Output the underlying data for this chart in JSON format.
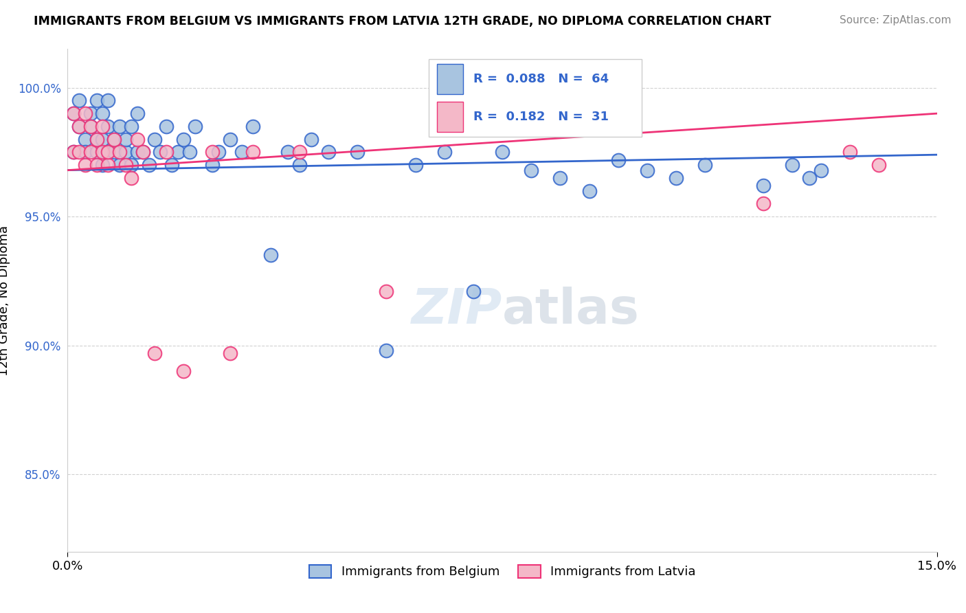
{
  "title": "IMMIGRANTS FROM BELGIUM VS IMMIGRANTS FROM LATVIA 12TH GRADE, NO DIPLOMA CORRELATION CHART",
  "source": "Source: ZipAtlas.com",
  "ylabel": "12th Grade, No Diploma",
  "legend_belgium": "Immigrants from Belgium",
  "legend_latvia": "Immigrants from Latvia",
  "R_belgium": 0.088,
  "N_belgium": 64,
  "R_latvia": 0.182,
  "N_latvia": 31,
  "color_belgium": "#a8c4e0",
  "color_latvia": "#f4b8c8",
  "color_line_belgium": "#3366cc",
  "color_line_latvia": "#ee3377",
  "color_text_blue": "#3366cc",
  "xmin": 0.0,
  "xmax": 0.15,
  "ymin": 0.82,
  "ymax": 1.015,
  "yticks": [
    0.85,
    0.9,
    0.95,
    1.0
  ],
  "ytick_labels": [
    "85.0%",
    "90.0%",
    "95.0%",
    "100.0%"
  ],
  "bel_line_y0": 0.968,
  "bel_line_y1": 0.974,
  "lat_line_y0": 0.968,
  "lat_line_y1": 0.99,
  "belgium_x": [
    0.001,
    0.001,
    0.002,
    0.002,
    0.003,
    0.003,
    0.004,
    0.004,
    0.005,
    0.005,
    0.005,
    0.006,
    0.006,
    0.006,
    0.007,
    0.007,
    0.007,
    0.008,
    0.008,
    0.009,
    0.009,
    0.01,
    0.01,
    0.011,
    0.011,
    0.012,
    0.012,
    0.013,
    0.014,
    0.015,
    0.016,
    0.017,
    0.018,
    0.019,
    0.02,
    0.021,
    0.022,
    0.025,
    0.026,
    0.028,
    0.03,
    0.032,
    0.035,
    0.038,
    0.04,
    0.042,
    0.045,
    0.05,
    0.055,
    0.06,
    0.065,
    0.07,
    0.075,
    0.08,
    0.085,
    0.09,
    0.095,
    0.1,
    0.105,
    0.11,
    0.12,
    0.125,
    0.128,
    0.13
  ],
  "belgium_y": [
    0.975,
    0.99,
    0.985,
    0.995,
    0.98,
    0.975,
    0.99,
    0.985,
    0.975,
    0.98,
    0.995,
    0.97,
    0.98,
    0.99,
    0.975,
    0.985,
    0.995,
    0.975,
    0.98,
    0.97,
    0.985,
    0.975,
    0.98,
    0.97,
    0.985,
    0.975,
    0.99,
    0.975,
    0.97,
    0.98,
    0.975,
    0.985,
    0.97,
    0.975,
    0.98,
    0.975,
    0.985,
    0.97,
    0.975,
    0.98,
    0.975,
    0.985,
    0.935,
    0.975,
    0.97,
    0.98,
    0.975,
    0.975,
    0.898,
    0.97,
    0.975,
    0.921,
    0.975,
    0.968,
    0.965,
    0.96,
    0.972,
    0.968,
    0.965,
    0.97,
    0.962,
    0.97,
    0.965,
    0.968
  ],
  "latvia_x": [
    0.001,
    0.001,
    0.002,
    0.002,
    0.003,
    0.003,
    0.004,
    0.004,
    0.005,
    0.005,
    0.006,
    0.006,
    0.007,
    0.007,
    0.008,
    0.009,
    0.01,
    0.011,
    0.012,
    0.013,
    0.015,
    0.017,
    0.02,
    0.025,
    0.028,
    0.032,
    0.04,
    0.055,
    0.12,
    0.135,
    0.14
  ],
  "latvia_y": [
    0.975,
    0.99,
    0.975,
    0.985,
    0.97,
    0.99,
    0.975,
    0.985,
    0.97,
    0.98,
    0.975,
    0.985,
    0.97,
    0.975,
    0.98,
    0.975,
    0.97,
    0.965,
    0.98,
    0.975,
    0.897,
    0.975,
    0.89,
    0.975,
    0.897,
    0.975,
    0.975,
    0.921,
    0.955,
    0.975,
    0.97
  ]
}
